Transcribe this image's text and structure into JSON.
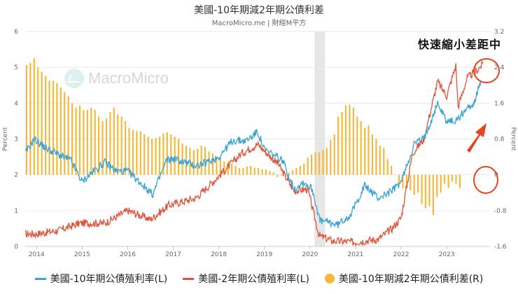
{
  "title": "美國-10年期減2年期公債利差",
  "subtitle": "MacroMicro.me | 財經M平方",
  "watermark": "MacroMicro",
  "annotation": "快速縮小差距中",
  "colors": {
    "ten_year": "#3aa3d6",
    "two_year": "#e0533a",
    "spread": "#f2b93b",
    "highlight": "#e6e6e6",
    "annotation": "#e8431f",
    "grid": "#eaeaea"
  },
  "chart_data": {
    "type": "line+bar",
    "title": "美國-10年期減2年期公債利差",
    "x_range": [
      2013.75,
      2023.95
    ],
    "x_ticks": [
      "2014",
      "2015",
      "2016",
      "2017",
      "2018",
      "2019",
      "2020",
      "2021",
      "2022",
      "2023"
    ],
    "left_axis": {
      "label": "Percent",
      "range": [
        0,
        6
      ],
      "ticks": [
        "0",
        "1",
        "2",
        "3",
        "4",
        "5",
        "6"
      ]
    },
    "right_axis": {
      "label": "Percent",
      "range": [
        -1.6,
        3.2
      ],
      "ticks": [
        "-1.6",
        "-0.8",
        "0",
        "0.8",
        "1.6",
        "2.4",
        "3.2"
      ]
    },
    "highlight_band": {
      "start": 2020.1,
      "end": 2020.33
    },
    "series": [
      {
        "name": "美國-10年期公債殖利率(L)",
        "axis": "left",
        "type": "line",
        "points": [
          [
            2013.75,
            2.6
          ],
          [
            2013.95,
            3.0
          ],
          [
            2014.2,
            2.75
          ],
          [
            2014.5,
            2.55
          ],
          [
            2014.75,
            2.4
          ],
          [
            2015.0,
            1.8
          ],
          [
            2015.2,
            2.05
          ],
          [
            2015.5,
            2.35
          ],
          [
            2015.75,
            2.1
          ],
          [
            2016.0,
            2.1
          ],
          [
            2016.3,
            1.75
          ],
          [
            2016.55,
            1.45
          ],
          [
            2016.85,
            2.4
          ],
          [
            2017.0,
            2.45
          ],
          [
            2017.5,
            2.25
          ],
          [
            2017.75,
            2.35
          ],
          [
            2018.0,
            2.5
          ],
          [
            2018.3,
            2.95
          ],
          [
            2018.6,
            2.95
          ],
          [
            2018.85,
            3.2
          ],
          [
            2019.0,
            2.7
          ],
          [
            2019.4,
            2.4
          ],
          [
            2019.65,
            1.6
          ],
          [
            2019.85,
            1.8
          ],
          [
            2020.05,
            1.6
          ],
          [
            2020.22,
            0.7
          ],
          [
            2020.4,
            0.68
          ],
          [
            2020.6,
            0.6
          ],
          [
            2020.9,
            0.9
          ],
          [
            2021.2,
            1.7
          ],
          [
            2021.5,
            1.35
          ],
          [
            2021.8,
            1.55
          ],
          [
            2022.0,
            1.8
          ],
          [
            2022.3,
            2.9
          ],
          [
            2022.5,
            3.0
          ],
          [
            2022.8,
            4.0
          ],
          [
            2023.0,
            3.5
          ],
          [
            2023.2,
            3.5
          ],
          [
            2023.4,
            3.8
          ],
          [
            2023.6,
            4.0
          ],
          [
            2023.75,
            4.6
          ]
        ]
      },
      {
        "name": "美國-2年期公債殖利率(L)",
        "axis": "left",
        "type": "line",
        "points": [
          [
            2013.75,
            0.35
          ],
          [
            2014.0,
            0.35
          ],
          [
            2014.5,
            0.45
          ],
          [
            2014.95,
            0.65
          ],
          [
            2015.5,
            0.65
          ],
          [
            2016.0,
            1.0
          ],
          [
            2016.5,
            0.75
          ],
          [
            2016.9,
            1.15
          ],
          [
            2017.5,
            1.35
          ],
          [
            2017.95,
            1.9
          ],
          [
            2018.5,
            2.6
          ],
          [
            2018.85,
            2.85
          ],
          [
            2019.3,
            2.3
          ],
          [
            2019.65,
            1.55
          ],
          [
            2019.95,
            1.6
          ],
          [
            2020.2,
            0.3
          ],
          [
            2020.5,
            0.15
          ],
          [
            2021.0,
            0.12
          ],
          [
            2021.5,
            0.2
          ],
          [
            2021.8,
            0.5
          ],
          [
            2022.0,
            0.8
          ],
          [
            2022.25,
            2.6
          ],
          [
            2022.5,
            3.0
          ],
          [
            2022.8,
            4.6
          ],
          [
            2023.0,
            4.2
          ],
          [
            2023.2,
            5.05
          ],
          [
            2023.25,
            3.9
          ],
          [
            2023.45,
            4.7
          ],
          [
            2023.65,
            4.9
          ],
          [
            2023.8,
            5.1
          ]
        ]
      },
      {
        "name": "美國-10年期減2年期公債利差(R)",
        "axis": "right",
        "type": "bar",
        "x_start": 2013.78,
        "x_step": 0.0834,
        "values": [
          2.45,
          2.5,
          2.6,
          2.4,
          2.3,
          2.2,
          2.1,
          2.1,
          2.05,
          1.95,
          1.85,
          1.75,
          1.6,
          1.5,
          1.55,
          1.45,
          1.45,
          1.5,
          1.45,
          1.3,
          1.2,
          1.25,
          1.4,
          1.5,
          1.35,
          1.3,
          1.2,
          1.05,
          1.0,
          0.98,
          0.97,
          0.9,
          0.85,
          0.8,
          0.82,
          0.85,
          0.92,
          0.95,
          0.9,
          0.85,
          0.8,
          0.7,
          0.65,
          0.6,
          0.55,
          0.58,
          0.65,
          0.62,
          0.52,
          0.48,
          0.4,
          0.38,
          0.3,
          0.3,
          0.25,
          0.2,
          0.15,
          0.15,
          0.18,
          0.2,
          0.16,
          0.15,
          0.12,
          0.12,
          0.08,
          0.05,
          -0.05,
          -0.02,
          0.02,
          0.05,
          0.1,
          0.15,
          0.2,
          0.25,
          0.38,
          0.45,
          0.5,
          0.5,
          0.55,
          0.6,
          0.78,
          0.9,
          1.3,
          1.4,
          1.55,
          1.57,
          1.5,
          1.3,
          1.2,
          1.05,
          1.1,
          0.9,
          0.8,
          0.65,
          0.6,
          0.35,
          0.2,
          0.0,
          -0.2,
          -0.3,
          -0.25,
          -0.35,
          -0.45,
          -0.4,
          -0.65,
          -0.75,
          -0.7,
          -0.9,
          -0.5,
          -0.4,
          -0.2,
          -0.3,
          -0.15,
          -0.2,
          -0.3
        ]
      }
    ]
  },
  "legend": {
    "ten_year": "美國-10年期公債殖利率(L)",
    "two_year": "美國-2年期公債殖利率(L)",
    "spread": "美國-10年期減2年期公債利差(R)"
  }
}
